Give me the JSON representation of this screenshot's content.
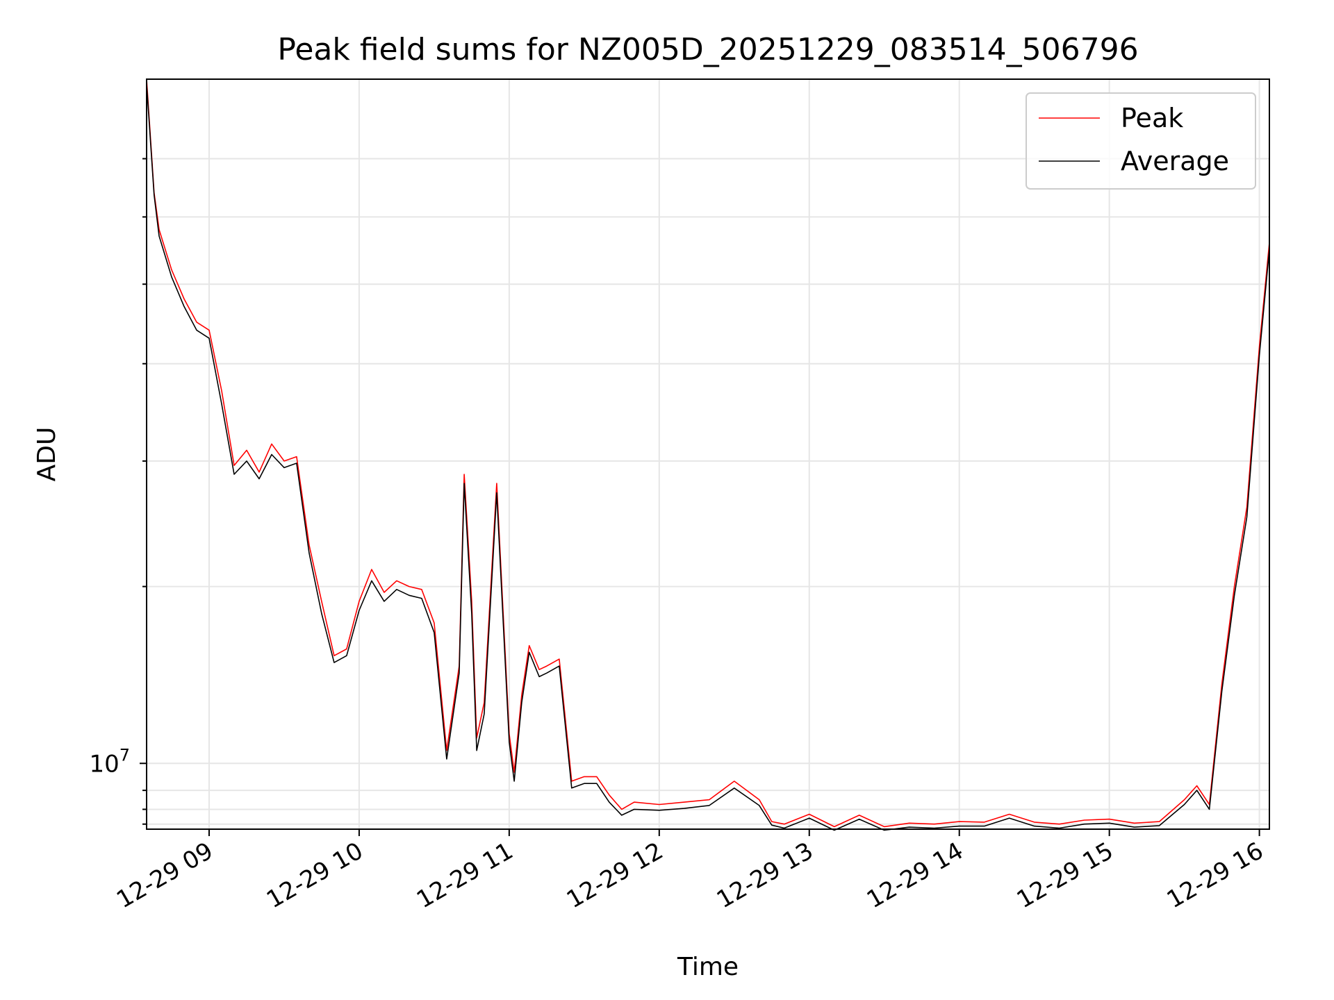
{
  "chart_data": {
    "type": "line",
    "title": "Peak field sums for NZ005D_20251229_083514_506796",
    "xlabel": "Time",
    "ylabel": "ADU",
    "y_scale": "log",
    "grid": true,
    "legend_position": "top-right",
    "x_ticks": [
      "12-29 09",
      "12-29 10",
      "12-29 11",
      "12-29 12",
      "12-29 13",
      "12-29 14",
      "12-29 15",
      "12-29 16"
    ],
    "y_tick_label": {
      "base": "10",
      "exponent": "7"
    },
    "xlim": [
      "2025-12-29 08:35",
      "2025-12-29 16:04"
    ],
    "ylim": [
      8600000,
      48000000
    ],
    "series": [
      {
        "name": "Peak",
        "color": "#ff0000",
        "x": [
          "08:35",
          "08:38",
          "08:40",
          "08:45",
          "08:50",
          "08:55",
          "09:00",
          "09:05",
          "09:10",
          "09:15",
          "09:20",
          "09:25",
          "09:30",
          "09:35",
          "09:40",
          "09:45",
          "09:50",
          "09:55",
          "10:00",
          "10:05",
          "10:10",
          "10:15",
          "10:20",
          "10:25",
          "10:30",
          "10:35",
          "10:40",
          "10:42",
          "10:45",
          "10:47",
          "10:50",
          "10:55",
          "11:00",
          "11:02",
          "11:05",
          "11:08",
          "11:12",
          "11:15",
          "11:20",
          "11:25",
          "11:30",
          "11:35",
          "11:40",
          "11:45",
          "11:50",
          "12:00",
          "12:10",
          "12:20",
          "12:30",
          "12:40",
          "12:45",
          "12:50",
          "13:00",
          "13:10",
          "13:20",
          "13:30",
          "13:40",
          "13:50",
          "14:00",
          "14:10",
          "14:20",
          "14:30",
          "14:40",
          "14:50",
          "15:00",
          "15:10",
          "15:20",
          "15:30",
          "15:35",
          "15:40",
          "15:45",
          "15:50",
          "15:55",
          "16:00",
          "16:04"
        ],
        "y": [
          48000000,
          37000000,
          34000000,
          31000000,
          29000000,
          27500000,
          27000000,
          23500000,
          19800000,
          20500000,
          19500000,
          20800000,
          20000000,
          20200000,
          16500000,
          14500000,
          12800000,
          13000000,
          14500000,
          15600000,
          14800000,
          15200000,
          15000000,
          14900000,
          13800000,
          10300000,
          12500000,
          19400000,
          14500000,
          10600000,
          11500000,
          19000000,
          10700000,
          9800000,
          11700000,
          13100000,
          12400000,
          12500000,
          12700000,
          9600000,
          9700000,
          9700000,
          9300000,
          9000000,
          9150000,
          9100000,
          9150000,
          9200000,
          9600000,
          9200000,
          8750000,
          8700000,
          8900000,
          8650000,
          8880000,
          8650000,
          8720000,
          8700000,
          8750000,
          8740000,
          8900000,
          8740000,
          8700000,
          8780000,
          8800000,
          8720000,
          8750000,
          9200000,
          9500000,
          9100000,
          12000000,
          15000000,
          18000000,
          26000000,
          33000000
        ]
      },
      {
        "name": "Average",
        "color": "#000000",
        "x": [
          "08:35",
          "08:38",
          "08:40",
          "08:45",
          "08:50",
          "08:55",
          "09:00",
          "09:05",
          "09:10",
          "09:15",
          "09:20",
          "09:25",
          "09:30",
          "09:35",
          "09:40",
          "09:45",
          "09:50",
          "09:55",
          "10:00",
          "10:05",
          "10:10",
          "10:15",
          "10:20",
          "10:25",
          "10:30",
          "10:35",
          "10:40",
          "10:42",
          "10:45",
          "10:47",
          "10:50",
          "10:55",
          "11:00",
          "11:02",
          "11:05",
          "11:08",
          "11:12",
          "11:15",
          "11:20",
          "11:25",
          "11:30",
          "11:35",
          "11:40",
          "11:45",
          "11:50",
          "12:00",
          "12:10",
          "12:20",
          "12:30",
          "12:40",
          "12:45",
          "12:50",
          "13:00",
          "13:10",
          "13:20",
          "13:30",
          "13:40",
          "13:50",
          "14:00",
          "14:10",
          "14:20",
          "14:30",
          "14:40",
          "14:50",
          "15:00",
          "15:10",
          "15:20",
          "15:30",
          "15:35",
          "15:40",
          "15:45",
          "15:50",
          "15:55",
          "16:00",
          "16:04"
        ],
        "y": [
          47500000,
          36800000,
          33500000,
          30500000,
          28500000,
          27000000,
          26500000,
          22800000,
          19400000,
          20000000,
          19200000,
          20300000,
          19700000,
          19900000,
          16200000,
          14100000,
          12600000,
          12800000,
          14200000,
          15200000,
          14500000,
          14900000,
          14700000,
          14600000,
          13500000,
          10100000,
          12300000,
          19000000,
          14100000,
          10300000,
          11200000,
          18600000,
          10500000,
          9600000,
          11500000,
          12900000,
          12200000,
          12300000,
          12500000,
          9450000,
          9550000,
          9550000,
          9150000,
          8880000,
          9000000,
          8980000,
          9020000,
          9080000,
          9450000,
          9080000,
          8680000,
          8620000,
          8820000,
          8580000,
          8800000,
          8580000,
          8640000,
          8620000,
          8660000,
          8660000,
          8820000,
          8660000,
          8620000,
          8700000,
          8720000,
          8640000,
          8670000,
          9100000,
          9400000,
          9000000,
          11800000,
          14700000,
          17600000,
          25500000,
          32500000
        ]
      }
    ]
  }
}
